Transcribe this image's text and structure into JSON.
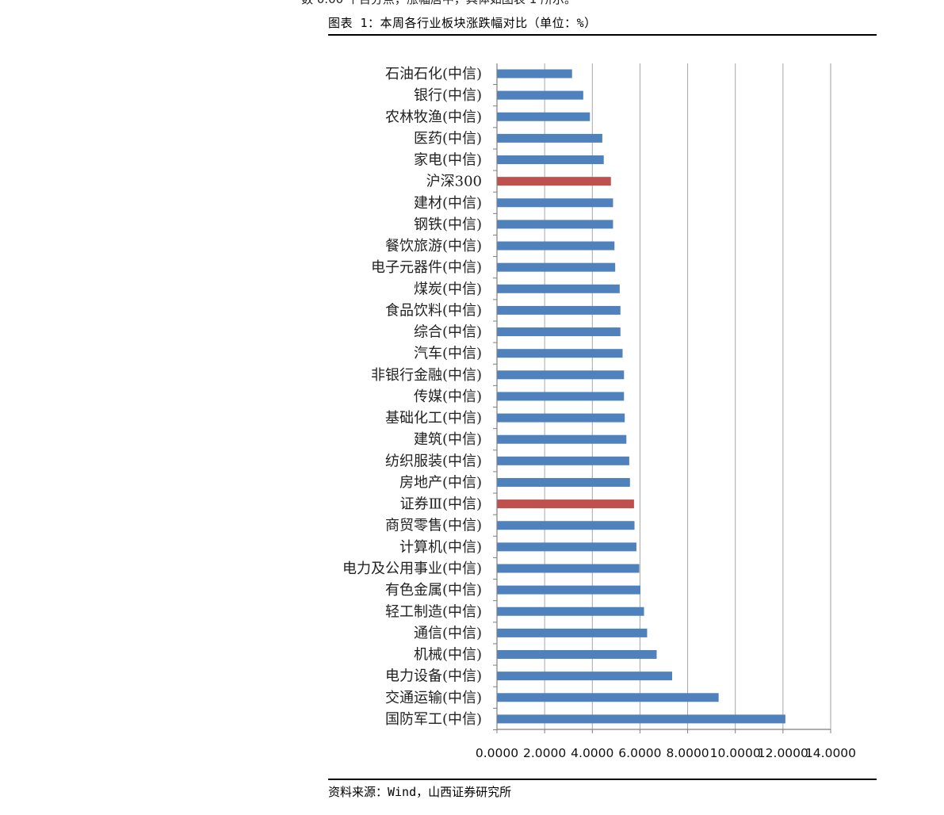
{
  "header": {
    "cut_text": "数 0.00 个百分点，涨幅居中，具体如图表 1 所示。",
    "figure_title": "图表 1：本周各行业板块涨跌幅对比（单位：%）"
  },
  "footer": {
    "source": "资料来源：Wind，山西证券研究所"
  },
  "colors": {
    "bar": "#4F81BD",
    "highlight": "#C0504D",
    "grid": "#A6A6A6",
    "axis": "#7F7F7F"
  },
  "chart_data": {
    "type": "bar",
    "orientation": "horizontal",
    "title": "",
    "xlabel": "",
    "ylabel": "",
    "xlim": [
      0,
      14
    ],
    "x_ticks": [
      "0.0000",
      "2.0000",
      "4.0000",
      "6.0000",
      "8.0000",
      "10.0000",
      "12.0000",
      "14.0000"
    ],
    "grid": "vertical major gridlines",
    "legend": "none",
    "categories": [
      "石油石化(中信)",
      "银行(中信)",
      "农林牧渔(中信)",
      "医药(中信)",
      "家电(中信)",
      "沪深300",
      "建材(中信)",
      "钢铁(中信)",
      "餐饮旅游(中信)",
      "电子元器件(中信)",
      "煤炭(中信)",
      "食品饮料(中信)",
      "综合(中信)",
      "汽车(中信)",
      "非银行金融(中信)",
      "传媒(中信)",
      "基础化工(中信)",
      "建筑(中信)",
      "纺织服装(中信)",
      "房地产(中信)",
      "证券Ⅲ(中信)",
      "商贸零售(中信)",
      "计算机(中信)",
      "电力及公用事业(中信)",
      "有色金属(中信)",
      "轻工制造(中信)",
      "通信(中信)",
      "机械(中信)",
      "电力设备(中信)",
      "交通运输(中信)",
      "国防军工(中信)"
    ],
    "values": [
      3.15,
      3.62,
      3.9,
      4.42,
      4.48,
      4.78,
      4.87,
      4.87,
      4.93,
      4.96,
      5.15,
      5.18,
      5.18,
      5.27,
      5.33,
      5.33,
      5.36,
      5.43,
      5.55,
      5.58,
      5.75,
      5.77,
      5.85,
      5.97,
      6.02,
      6.17,
      6.3,
      6.7,
      7.35,
      9.3,
      12.1
    ],
    "highlighted": [
      "沪深300",
      "证券Ⅲ(中信)"
    ]
  }
}
